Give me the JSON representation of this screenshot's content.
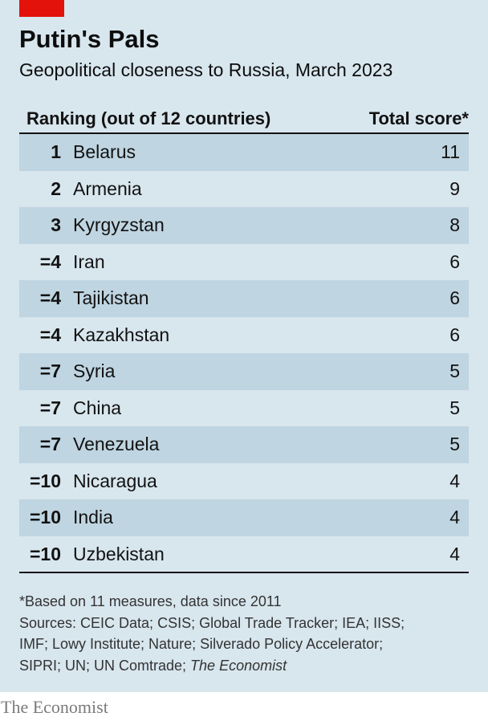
{
  "title": "Putin's Pals",
  "subtitle": "Geopolitical closeness to Russia, March 2023",
  "footer_brand": "The Economist",
  "colors": {
    "accent": "#e3120b",
    "panel_background": "#d8e6ee",
    "row_shade": "#bfd5e1",
    "text": "#121212"
  },
  "chart_data": {
    "type": "table",
    "title": "Putin's Pals",
    "subtitle": "Geopolitical closeness to Russia, March 2023",
    "columns": [
      "Ranking (out of 12 countries)",
      "Total score*"
    ],
    "rows": [
      {
        "rank": "1",
        "country": "Belarus",
        "score": "11"
      },
      {
        "rank": "2",
        "country": "Armenia",
        "score": "9"
      },
      {
        "rank": "3",
        "country": "Kyrgyzstan",
        "score": "8"
      },
      {
        "rank": "=4",
        "country": "Iran",
        "score": "6"
      },
      {
        "rank": "=4",
        "country": "Tajikistan",
        "score": "6"
      },
      {
        "rank": "=4",
        "country": "Kazakhstan",
        "score": "6"
      },
      {
        "rank": "=7",
        "country": "Syria",
        "score": "5"
      },
      {
        "rank": "=7",
        "country": "China",
        "score": "5"
      },
      {
        "rank": "=7",
        "country": "Venezuela",
        "score": "5"
      },
      {
        "rank": "=10",
        "country": "Nicaragua",
        "score": "4"
      },
      {
        "rank": "=10",
        "country": "India",
        "score": "4"
      },
      {
        "rank": "=10",
        "country": "Uzbekistan",
        "score": "4"
      }
    ],
    "footnote": "*Based on 11 measures, data since 2011",
    "sources_lines": [
      "Sources: CEIC Data; CSIS; Global Trade Tracker; IEA; IISS;",
      "IMF; Lowy Institute; Nature; Silverado Policy Accelerator;",
      "SIPRI; UN; UN Comtrade; "
    ],
    "sources_italic": "The Economist"
  }
}
